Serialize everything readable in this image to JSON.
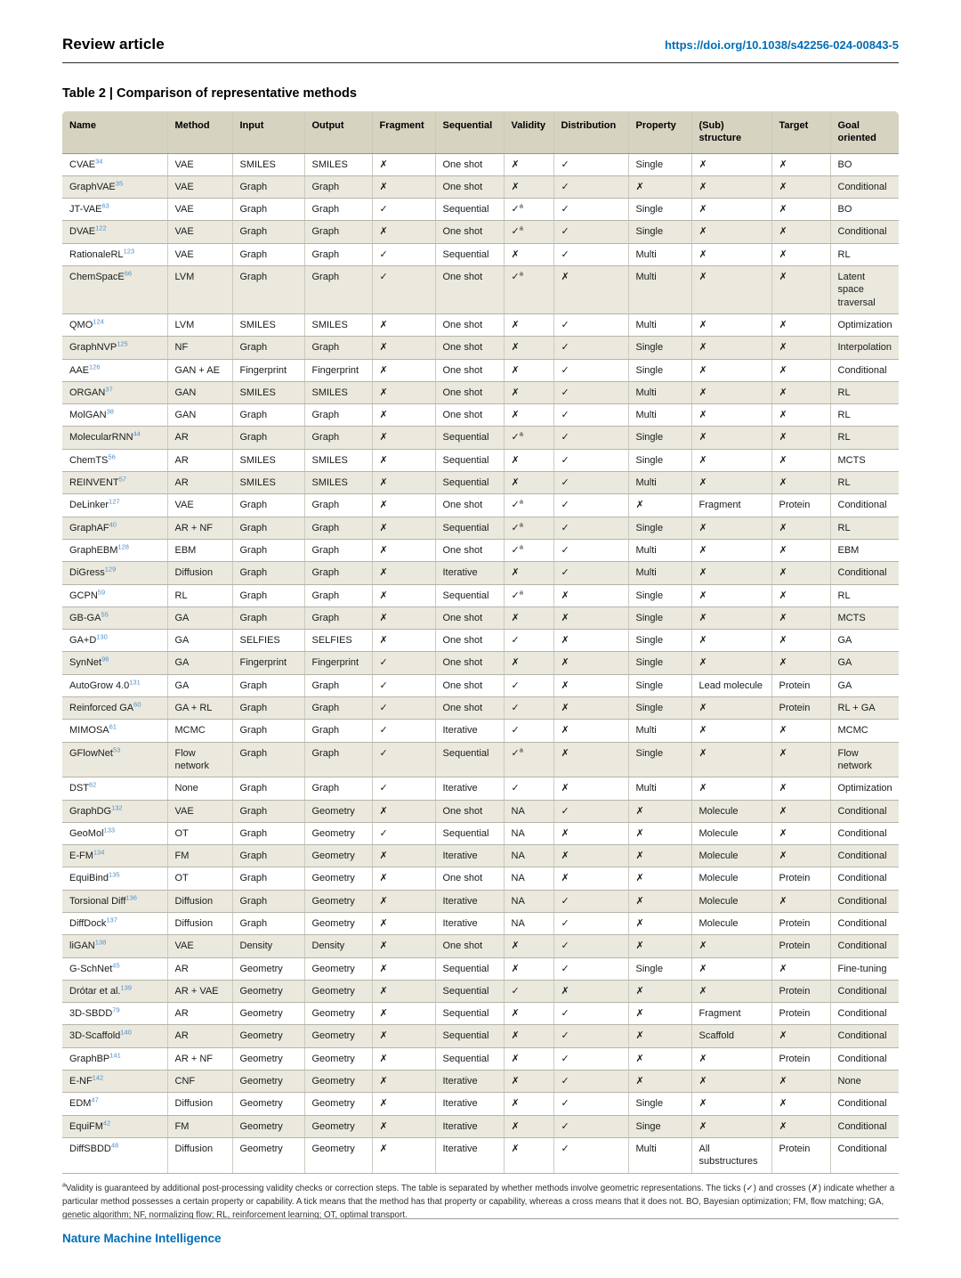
{
  "header": {
    "kicker": "Review article",
    "doi": "https://doi.org/10.1038/s42256-024-00843-5"
  },
  "table": {
    "title": "Table 2 | Comparison of representative methods",
    "columns": [
      "Name",
      "Method",
      "Input",
      "Output",
      "Fragment",
      "Sequential",
      "Validity",
      "Distribution",
      "Property",
      "(Sub) structure",
      "Target",
      "Goal oriented"
    ],
    "column_keys": [
      "name",
      "method",
      "input",
      "output",
      "fragment",
      "sequential",
      "validity",
      "distribution",
      "property",
      "substructure",
      "target",
      "goal-oriented"
    ],
    "check": "✓",
    "cross": "✗",
    "rows": [
      {
        "name": "CVAE",
        "ref": "34",
        "cells": [
          "VAE",
          "SMILES",
          "SMILES",
          "✗",
          "One shot",
          "✗",
          "✓",
          "Single",
          "✗",
          "✗",
          "BO"
        ]
      },
      {
        "name": "GraphVAE",
        "ref": "35",
        "cells": [
          "VAE",
          "Graph",
          "Graph",
          "✗",
          "One shot",
          "✗",
          "✓",
          "✗",
          "✗",
          "✗",
          "Conditional"
        ]
      },
      {
        "name": "JT-VAE",
        "ref": "63",
        "cells": [
          "VAE",
          "Graph",
          "Graph",
          "✓",
          "Sequential",
          "✓a",
          "✓",
          "Single",
          "✗",
          "✗",
          "BO"
        ]
      },
      {
        "name": "DVAE",
        "ref": "122",
        "cells": [
          "VAE",
          "Graph",
          "Graph",
          "✗",
          "One shot",
          "✓a",
          "✓",
          "Single",
          "✗",
          "✗",
          "Conditional"
        ]
      },
      {
        "name": "RationaleRL",
        "ref": "123",
        "cells": [
          "VAE",
          "Graph",
          "Graph",
          "✓",
          "Sequential",
          "✗",
          "✓",
          "Multi",
          "✗",
          "✗",
          "RL"
        ]
      },
      {
        "name": "ChemSpacE",
        "ref": "66",
        "cells": [
          "LVM",
          "Graph",
          "Graph",
          "✓",
          "One shot",
          "✓a",
          "✗",
          "Multi",
          "✗",
          "✗",
          "Latent space traversal"
        ]
      },
      {
        "name": "QMO",
        "ref": "124",
        "cells": [
          "LVM",
          "SMILES",
          "SMILES",
          "✗",
          "One shot",
          "✗",
          "✓",
          "Multi",
          "✗",
          "✗",
          "Optimization"
        ]
      },
      {
        "name": "GraphNVP",
        "ref": "125",
        "cells": [
          "NF",
          "Graph",
          "Graph",
          "✗",
          "One shot",
          "✗",
          "✓",
          "Single",
          "✗",
          "✗",
          "Interpolation"
        ]
      },
      {
        "name": "AAE",
        "ref": "126",
        "cells": [
          "GAN + AE",
          "Fingerprint",
          "Fingerprint",
          "✗",
          "One shot",
          "✗",
          "✓",
          "Single",
          "✗",
          "✗",
          "Conditional"
        ]
      },
      {
        "name": "ORGAN",
        "ref": "37",
        "cells": [
          "GAN",
          "SMILES",
          "SMILES",
          "✗",
          "One shot",
          "✗",
          "✓",
          "Multi",
          "✗",
          "✗",
          "RL"
        ]
      },
      {
        "name": "MolGAN",
        "ref": "38",
        "cells": [
          "GAN",
          "Graph",
          "Graph",
          "✗",
          "One shot",
          "✗",
          "✓",
          "Multi",
          "✗",
          "✗",
          "RL"
        ]
      },
      {
        "name": "MolecularRNN",
        "ref": "44",
        "cells": [
          "AR",
          "Graph",
          "Graph",
          "✗",
          "Sequential",
          "✓a",
          "✓",
          "Single",
          "✗",
          "✗",
          "RL"
        ]
      },
      {
        "name": "ChemTS",
        "ref": "56",
        "cells": [
          "AR",
          "SMILES",
          "SMILES",
          "✗",
          "Sequential",
          "✗",
          "✓",
          "Single",
          "✗",
          "✗",
          "MCTS"
        ]
      },
      {
        "name": "REINVENT",
        "ref": "57",
        "cells": [
          "AR",
          "SMILES",
          "SMILES",
          "✗",
          "Sequential",
          "✗",
          "✓",
          "Multi",
          "✗",
          "✗",
          "RL"
        ]
      },
      {
        "name": "DeLinker",
        "ref": "127",
        "cells": [
          "VAE",
          "Graph",
          "Graph",
          "✗",
          "One shot",
          "✓a",
          "✓",
          "✗",
          "Fragment",
          "Protein",
          "Conditional"
        ]
      },
      {
        "name": "GraphAF",
        "ref": "40",
        "cells": [
          "AR + NF",
          "Graph",
          "Graph",
          "✗",
          "Sequential",
          "✓a",
          "✓",
          "Single",
          "✗",
          "✗",
          "RL"
        ]
      },
      {
        "name": "GraphEBM",
        "ref": "128",
        "cells": [
          "EBM",
          "Graph",
          "Graph",
          "✗",
          "One shot",
          "✓a",
          "✓",
          "Multi",
          "✗",
          "✗",
          "EBM"
        ]
      },
      {
        "name": "DiGress",
        "ref": "129",
        "cells": [
          "Diffusion",
          "Graph",
          "Graph",
          "✗",
          "Iterative",
          "✗",
          "✓",
          "Multi",
          "✗",
          "✗",
          "Conditional"
        ]
      },
      {
        "name": "GCPN",
        "ref": "59",
        "cells": [
          "RL",
          "Graph",
          "Graph",
          "✗",
          "Sequential",
          "✓a",
          "✗",
          "Single",
          "✗",
          "✗",
          "RL"
        ]
      },
      {
        "name": "GB-GA",
        "ref": "55",
        "cells": [
          "GA",
          "Graph",
          "Graph",
          "✗",
          "One shot",
          "✗",
          "✗",
          "Single",
          "✗",
          "✗",
          "MCTS"
        ]
      },
      {
        "name": "GA+D",
        "ref": "130",
        "cells": [
          "GA",
          "SELFIES",
          "SELFIES",
          "✗",
          "One shot",
          "✓",
          "✗",
          "Single",
          "✗",
          "✗",
          "GA"
        ]
      },
      {
        "name": "SynNet",
        "ref": "96",
        "cells": [
          "GA",
          "Fingerprint",
          "Fingerprint",
          "✓",
          "One shot",
          "✗",
          "✗",
          "Single",
          "✗",
          "✗",
          "GA"
        ]
      },
      {
        "name": "AutoGrow 4.0",
        "ref": "131",
        "cells": [
          "GA",
          "Graph",
          "Graph",
          "✓",
          "One shot",
          "✓",
          "✗",
          "Single",
          "Lead molecule",
          "Protein",
          "GA"
        ]
      },
      {
        "name": "Reinforced GA",
        "ref": "60",
        "cells": [
          "GA + RL",
          "Graph",
          "Graph",
          "✓",
          "One shot",
          "✓",
          "✗",
          "Single",
          "✗",
          "Protein",
          "RL + GA"
        ]
      },
      {
        "name": "MIMOSA",
        "ref": "61",
        "cells": [
          "MCMC",
          "Graph",
          "Graph",
          "✓",
          "Iterative",
          "✓",
          "✗",
          "Multi",
          "✗",
          "✗",
          "MCMC"
        ]
      },
      {
        "name": "GFlowNet",
        "ref": "53",
        "cells": [
          "Flow network",
          "Graph",
          "Graph",
          "✓",
          "Sequential",
          "✓a",
          "✗",
          "Single",
          "✗",
          "✗",
          "Flow network"
        ]
      },
      {
        "name": "DST",
        "ref": "62",
        "cells": [
          "None",
          "Graph",
          "Graph",
          "✓",
          "Iterative",
          "✓",
          "✗",
          "Multi",
          "✗",
          "✗",
          "Optimization"
        ]
      },
      {
        "name": "GraphDG",
        "ref": "132",
        "cells": [
          "VAE",
          "Graph",
          "Geometry",
          "✗",
          "One shot",
          "NA",
          "✓",
          "✗",
          "Molecule",
          "✗",
          "Conditional"
        ]
      },
      {
        "name": "GeoMol",
        "ref": "133",
        "cells": [
          "OT",
          "Graph",
          "Geometry",
          "✓",
          "Sequential",
          "NA",
          "✗",
          "✗",
          "Molecule",
          "✗",
          "Conditional"
        ]
      },
      {
        "name": "E-FM",
        "ref": "134",
        "cells": [
          "FM",
          "Graph",
          "Geometry",
          "✗",
          "Iterative",
          "NA",
          "✗",
          "✗",
          "Molecule",
          "✗",
          "Conditional"
        ]
      },
      {
        "name": "EquiBind",
        "ref": "135",
        "cells": [
          "OT",
          "Graph",
          "Geometry",
          "✗",
          "One shot",
          "NA",
          "✗",
          "✗",
          "Molecule",
          "Protein",
          "Conditional"
        ]
      },
      {
        "name": "Torsional Diff",
        "ref": "136",
        "cells": [
          "Diffusion",
          "Graph",
          "Geometry",
          "✗",
          "Iterative",
          "NA",
          "✓",
          "✗",
          "Molecule",
          "✗",
          "Conditional"
        ]
      },
      {
        "name": "DiffDock",
        "ref": "137",
        "cells": [
          "Diffusion",
          "Graph",
          "Geometry",
          "✗",
          "Iterative",
          "NA",
          "✓",
          "✗",
          "Molecule",
          "Protein",
          "Conditional"
        ]
      },
      {
        "name": "liGAN",
        "ref": "138",
        "cells": [
          "VAE",
          "Density",
          "Density",
          "✗",
          "One shot",
          "✗",
          "✓",
          "✗",
          "✗",
          "Protein",
          "Conditional"
        ]
      },
      {
        "name": "G-SchNet",
        "ref": "45",
        "cells": [
          "AR",
          "Geometry",
          "Geometry",
          "✗",
          "Sequential",
          "✗",
          "✓",
          "Single",
          "✗",
          "✗",
          "Fine-tuning"
        ]
      },
      {
        "name": "Drótar et al.",
        "ref": "139",
        "cells": [
          "AR + VAE",
          "Geometry",
          "Geometry",
          "✗",
          "Sequential",
          "✓",
          "✗",
          "✗",
          "✗",
          "Protein",
          "Conditional"
        ]
      },
      {
        "name": "3D-SBDD",
        "ref": "79",
        "cells": [
          "AR",
          "Geometry",
          "Geometry",
          "✗",
          "Sequential",
          "✗",
          "✓",
          "✗",
          "Fragment",
          "Protein",
          "Conditional"
        ]
      },
      {
        "name": "3D-Scaffold",
        "ref": "140",
        "cells": [
          "AR",
          "Geometry",
          "Geometry",
          "✗",
          "Sequential",
          "✗",
          "✓",
          "✗",
          "Scaffold",
          "✗",
          "Conditional"
        ]
      },
      {
        "name": "GraphBP",
        "ref": "141",
        "cells": [
          "AR + NF",
          "Geometry",
          "Geometry",
          "✗",
          "Sequential",
          "✗",
          "✓",
          "✗",
          "✗",
          "Protein",
          "Conditional"
        ]
      },
      {
        "name": "E-NF",
        "ref": "142",
        "cells": [
          "CNF",
          "Geometry",
          "Geometry",
          "✗",
          "Iterative",
          "✗",
          "✓",
          "✗",
          "✗",
          "✗",
          "None"
        ]
      },
      {
        "name": "EDM",
        "ref": "47",
        "cells": [
          "Diffusion",
          "Geometry",
          "Geometry",
          "✗",
          "Iterative",
          "✗",
          "✓",
          "Single",
          "✗",
          "✗",
          "Conditional"
        ]
      },
      {
        "name": "EquiFM",
        "ref": "42",
        "cells": [
          "FM",
          "Geometry",
          "Geometry",
          "✗",
          "Iterative",
          "✗",
          "✓",
          "Singe",
          "✗",
          "✗",
          "Conditional"
        ]
      },
      {
        "name": "DiffSBDD",
        "ref": "48",
        "cells": [
          "Diffusion",
          "Geometry",
          "Geometry",
          "✗",
          "Iterative",
          "✗",
          "✓",
          "Multi",
          "All substructures",
          "Protein",
          "Conditional"
        ]
      }
    ],
    "footnote_marker": "a",
    "footnote": "Validity is guaranteed by additional post-processing validity checks or correction steps. The table is separated by whether methods involve geometric representations. The ticks (✓) and crosses (✗) indicate whether a particular method possesses a certain property or capability. A tick means that the method has that property or capability, whereas a cross means that it does not. BO, Bayesian optimization; FM, flow matching; GA, genetic algorithm; NF, normalizing flow; RL, reinforcement learning; OT, optimal transport."
  },
  "footer": {
    "journal": "Nature Machine Intelligence"
  },
  "colors": {
    "accent_blue": "#006eb7",
    "ref_blue": "#4d8fcc",
    "header_bg": "#d6d3c1",
    "stripe_bg": "#ebe9de"
  }
}
